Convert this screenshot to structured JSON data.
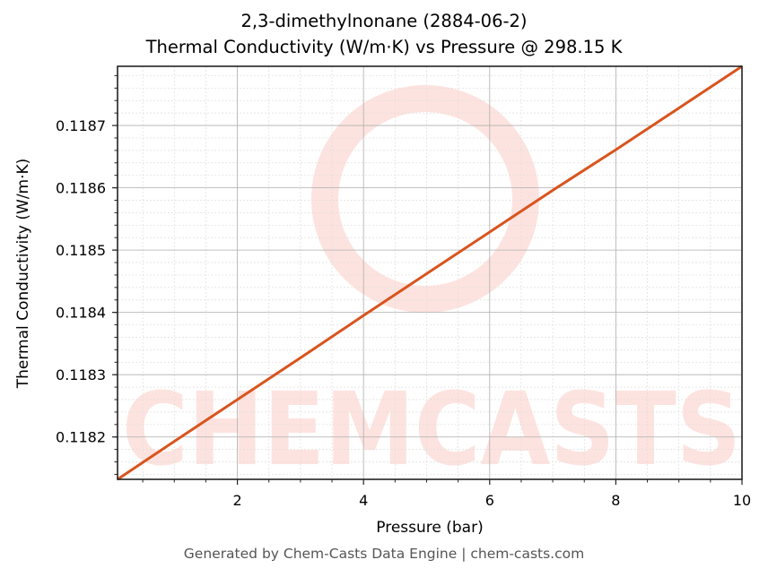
{
  "chart_data": {
    "type": "line",
    "title": "2,3-dimethylnonane (2884-06-2)",
    "subtitle": "Thermal Conductivity (W/m·K) vs Pressure @ 298.15 K",
    "xlabel": "Pressure (bar)",
    "ylabel": "Thermal Conductivity (W/m·K)",
    "xlim": [
      0.1,
      10
    ],
    "ylim": [
      0.118132,
      0.118795
    ],
    "x_ticks": [
      2,
      4,
      6,
      8,
      10
    ],
    "y_ticks": [
      0.1182,
      0.1183,
      0.1184,
      0.1185,
      0.1186,
      0.1187
    ],
    "y_tick_labels": [
      "0.1182",
      "0.1183",
      "0.1184",
      "0.1185",
      "0.1186",
      "0.1187"
    ],
    "grid": true,
    "minor_grid": true,
    "series": [
      {
        "name": "Thermal Conductivity",
        "color": "#d9541e",
        "x": [
          0.1,
          1,
          2,
          3,
          4,
          5,
          6,
          7,
          8,
          9,
          10
        ],
        "values": [
          0.118132,
          0.118193,
          0.11826,
          0.118327,
          0.118395,
          0.118462,
          0.118529,
          0.118596,
          0.118661,
          0.118728,
          0.118795
        ]
      }
    ]
  },
  "watermark": {
    "text": "CHEMCASTS",
    "color": "#fde3df"
  },
  "footer": {
    "text": "Generated by Chem-Casts Data Engine | chem-casts.com"
  }
}
